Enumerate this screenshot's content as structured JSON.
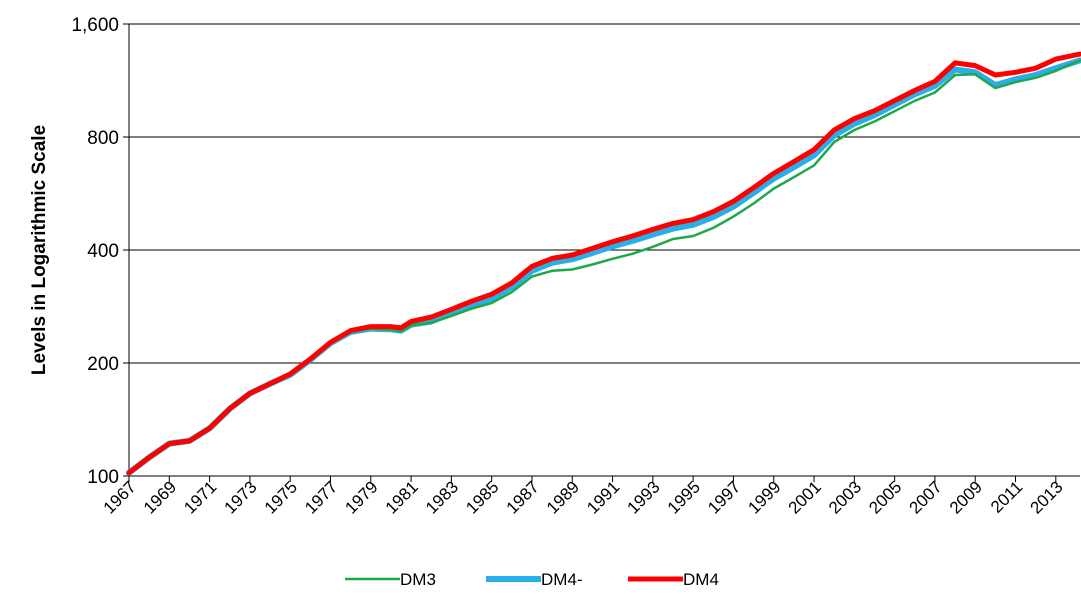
{
  "chart_data": {
    "type": "line",
    "title": "",
    "xlabel": "",
    "ylabel": "Levels in Logarithmic Scale",
    "y_scale": "log",
    "ylim": [
      100,
      1600
    ],
    "y_ticks": [
      100,
      200,
      400,
      800,
      1600
    ],
    "y_tick_labels": [
      "100",
      "200",
      "400",
      "800",
      "1,600"
    ],
    "xlim": [
      1967,
      2014.2
    ],
    "x_ticks": [
      1967,
      1969,
      1971,
      1973,
      1975,
      1977,
      1979,
      1981,
      1983,
      1985,
      1987,
      1989,
      1991,
      1993,
      1995,
      1997,
      1999,
      2001,
      2003,
      2005,
      2007,
      2009,
      2011,
      2013
    ],
    "x_tick_labels": [
      "1967",
      "1969",
      "1971",
      "1973",
      "1975",
      "1977",
      "1979",
      "1981",
      "1983",
      "1985",
      "1987",
      "1989",
      "1991",
      "1993",
      "1995",
      "1997",
      "1999",
      "2001",
      "2003",
      "2005",
      "2007",
      "2009",
      "2011",
      "2013"
    ],
    "grid": "horizontal major gridlines",
    "legend": {
      "position": "bottom"
    },
    "series": [
      {
        "name": "DM3",
        "color": "#1fa84a",
        "x": [
          1967.0,
          1968.0,
          1969.0,
          1970.0,
          1971.0,
          1972.0,
          1973.0,
          1974.0,
          1975.0,
          1976.0,
          1977.0,
          1978.0,
          1979.0,
          1980.0,
          1980.5,
          1981.0,
          1982.0,
          1983.0,
          1984.0,
          1985.0,
          1986.0,
          1987.0,
          1988.0,
          1989.0,
          1990.0,
          1991.0,
          1992.0,
          1993.0,
          1994.0,
          1995.0,
          1996.0,
          1997.0,
          1998.0,
          1999.0,
          2000.0,
          2001.0,
          2002.0,
          2003.0,
          2004.0,
          2005.0,
          2006.0,
          2007.0,
          2008.0,
          2009.0,
          2010.0,
          2011.0,
          2012.0,
          2013.0,
          2014.2
        ],
        "y": [
          102,
          112,
          122,
          124,
          134,
          151,
          166,
          176,
          187,
          204,
          226,
          242,
          247,
          245,
          243,
          252,
          256,
          267,
          279,
          289,
          309,
          340,
          352,
          355,
          366,
          379,
          391,
          408,
          428,
          436,
          458,
          491,
          532,
          583,
          625,
          672,
          776,
          835,
          880,
          937,
          999,
          1051,
          1170,
          1175,
          1080,
          1120,
          1150,
          1200,
          1280
        ]
      },
      {
        "name": "DM4-",
        "color": "#29aee8",
        "x": [
          1967.0,
          1968.0,
          1969.0,
          1970.0,
          1971.0,
          1972.0,
          1973.0,
          1974.0,
          1975.0,
          1976.0,
          1977.0,
          1978.0,
          1979.0,
          1980.0,
          1980.5,
          1981.0,
          1982.0,
          1983.0,
          1984.0,
          1985.0,
          1986.0,
          1987.0,
          1988.0,
          1989.0,
          1990.0,
          1991.0,
          1992.0,
          1993.0,
          1994.0,
          1995.0,
          1996.0,
          1997.0,
          1998.0,
          1999.0,
          2000.0,
          2001.0,
          2002.0,
          2003.0,
          2004.0,
          2005.0,
          2006.0,
          2007.0,
          2008.0,
          2009.0,
          2010.0,
          2011.0,
          2012.0,
          2013.0,
          2014.2
        ],
        "y": [
          102,
          112,
          122,
          124,
          134,
          151,
          166,
          176,
          186,
          204,
          226,
          242,
          247,
          246,
          244,
          253,
          258,
          272,
          285,
          297,
          319,
          352,
          370,
          378,
          393,
          409,
          423,
          440,
          456,
          467,
          490,
          522,
          568,
          620,
          665,
          715,
          808,
          868,
          915,
          975,
          1040,
          1095,
          1210,
          1190,
          1100,
          1140,
          1170,
          1220,
          1280
        ]
      },
      {
        "name": "DM4",
        "color": "#ff0000",
        "x": [
          1967.0,
          1968.0,
          1969.0,
          1970.0,
          1971.0,
          1972.0,
          1973.0,
          1974.0,
          1975.0,
          1976.0,
          1977.0,
          1978.0,
          1979.0,
          1980.0,
          1980.5,
          1981.0,
          1982.0,
          1983.0,
          1984.0,
          1985.0,
          1986.0,
          1987.0,
          1988.0,
          1989.0,
          1990.0,
          1991.0,
          1992.0,
          1993.0,
          1994.0,
          1995.0,
          1996.0,
          1997.0,
          1998.0,
          1999.0,
          2000.0,
          2001.0,
          2002.0,
          2003.0,
          2004.0,
          2005.0,
          2006.0,
          2007.0,
          2008.0,
          2009.0,
          2010.0,
          2011.0,
          2012.0,
          2013.0,
          2014.2
        ],
        "y": [
          102,
          112,
          122,
          124,
          134,
          151,
          166,
          176,
          187,
          205,
          227,
          244,
          250,
          250,
          248,
          258,
          265,
          278,
          292,
          305,
          327,
          362,
          380,
          388,
          404,
          421,
          436,
          454,
          471,
          482,
          506,
          539,
          586,
          640,
          688,
          740,
          835,
          895,
          940,
          1000,
          1065,
          1125,
          1260,
          1240,
          1170,
          1190,
          1220,
          1290,
          1330
        ]
      }
    ]
  }
}
